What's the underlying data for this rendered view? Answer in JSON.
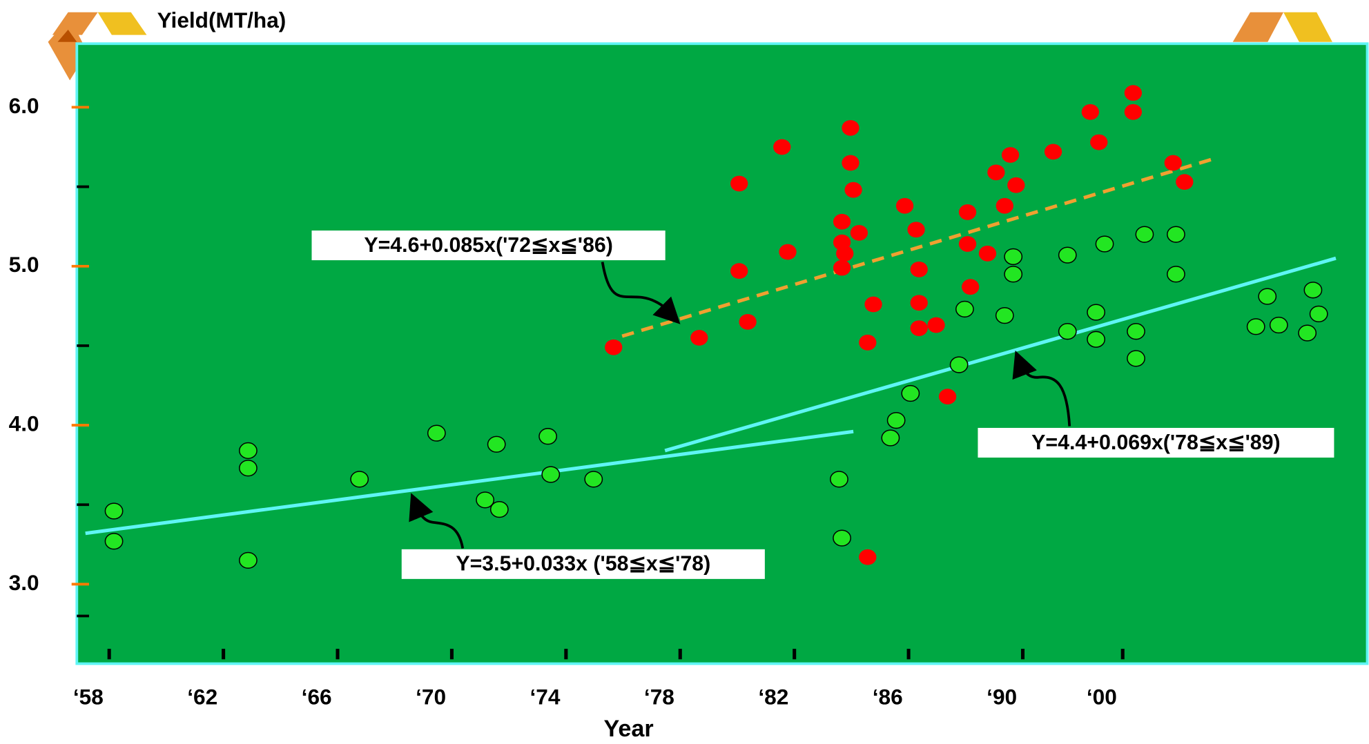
{
  "chart_data": {
    "type": "scatter",
    "y_label": "Yield(MT/ha)",
    "x_label": "Year",
    "xlim": [
      1957.6,
      2002.8
    ],
    "ylim": [
      2.5,
      6.4
    ],
    "xticks": [
      {
        "value": 1958,
        "label": "‘58"
      },
      {
        "value": 1962,
        "label": "‘62"
      },
      {
        "value": 1966,
        "label": "‘66"
      },
      {
        "value": 1970,
        "label": "‘70"
      },
      {
        "value": 1974,
        "label": "‘74"
      },
      {
        "value": 1978,
        "label": "‘78"
      },
      {
        "value": 1982,
        "label": "‘82"
      },
      {
        "value": 1986,
        "label": "‘86"
      },
      {
        "value": 1990,
        "label": "‘90"
      },
      {
        "value": 1993.5,
        "label": "‘00"
      }
    ],
    "yticks": [
      {
        "value": 6,
        "label": "6.0"
      },
      {
        "value": 5,
        "label": "5.0"
      },
      {
        "value": 4,
        "label": "4.0"
      },
      {
        "value": 3,
        "label": "3.0"
      }
    ],
    "yminorticks": [
      5.5,
      4.5,
      3.5,
      2.8
    ],
    "background": "#00a843",
    "series": [
      {
        "color": "#22e622",
        "x": [
          1958.9,
          1958.9,
          1963.6,
          1963.6,
          1963.6,
          1967.5,
          1970.2,
          1971.9,
          1972.3,
          1972.4,
          1974.1,
          1974.2,
          1975.7,
          1984.3,
          1984.4,
          1986.1,
          1986.3,
          1986.8,
          1988.5,
          1988.7,
          1990.1,
          1990.4,
          1990.4,
          1992.3,
          1992.3,
          1993.3,
          1993.3,
          1993.6,
          1994.7,
          1994.7,
          1995.0,
          1996.1,
          1996.1,
          1998.9,
          1999.3,
          1999.7,
          2000.7,
          2000.9,
          2001.1
        ],
        "values": [
          3.46,
          3.27,
          3.84,
          3.73,
          3.15,
          3.66,
          3.95,
          3.53,
          3.88,
          3.47,
          3.93,
          3.69,
          3.66,
          3.66,
          3.29,
          3.92,
          4.03,
          4.2,
          4.38,
          4.73,
          4.69,
          5.06,
          4.95,
          5.07,
          4.59,
          4.71,
          4.54,
          5.14,
          4.59,
          4.42,
          5.2,
          4.95,
          5.2,
          4.62,
          4.81,
          4.63,
          4.58,
          4.85,
          4.7
        ]
      },
      {
        "color": "#ff0000",
        "x": [
          1976.4,
          1979.4,
          1981.1,
          1980.8,
          1980.8,
          1982.3,
          1982.5,
          1984.4,
          1984.4,
          1984.4,
          1984.5,
          1984.7,
          1984.7,
          1984.8,
          1985.0,
          1985.5,
          1985.3,
          1985.3,
          1986.6,
          1987.0,
          1987.1,
          1987.1,
          1987.1,
          1987.7,
          1988.1,
          1988.8,
          1988.8,
          1988.9,
          1989.5,
          1989.8,
          1990.1,
          1990.3,
          1990.5,
          1991.8,
          1993.1,
          1993.4,
          1994.6,
          1994.6,
          1996.0,
          1996.4
        ],
        "values": [
          4.49,
          4.55,
          4.65,
          5.52,
          4.97,
          5.75,
          5.09,
          4.99,
          5.28,
          5.15,
          5.08,
          5.87,
          5.65,
          5.48,
          5.21,
          4.76,
          4.52,
          3.17,
          5.38,
          5.23,
          4.98,
          4.77,
          4.61,
          4.63,
          4.18,
          5.34,
          5.14,
          4.87,
          5.08,
          5.59,
          5.38,
          5.7,
          5.51,
          5.72,
          5.97,
          5.78,
          6.09,
          5.97,
          5.65,
          5.53
        ]
      }
    ],
    "trend_lines": [
      {
        "color": "#5ff5f5",
        "x": [
          1957.9,
          1984.8
        ],
        "y": [
          3.32,
          3.96
        ],
        "label": "Y=3.5+0.033x ('58≦x≦'78)"
      },
      {
        "color": "#5ff5f5",
        "x": [
          1978.2,
          2001.7
        ],
        "y": [
          3.84,
          5.05
        ],
        "label": "Y=4.4+0.069x('78≦x≦'89)"
      },
      {
        "color": "#f0a030",
        "dashed": true,
        "x": [
          1976.7,
          1997.5
        ],
        "y": [
          4.56,
          5.68
        ],
        "label": "Y=4.6+0.085x('72≦x≦'86)"
      }
    ]
  }
}
